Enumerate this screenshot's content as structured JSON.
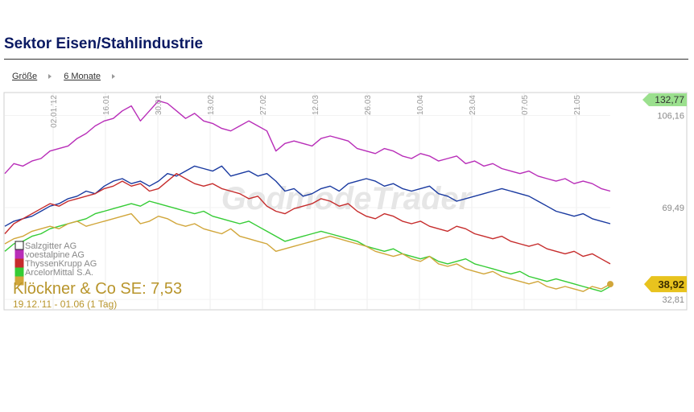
{
  "page_title": "Sektor Eisen/Stahlindustrie",
  "toolbar": {
    "size_label": "Größe",
    "range_label": "6 Monate"
  },
  "chart_data": {
    "type": "line",
    "x_ticks": [
      "02.01.'12",
      "16.01",
      "30.01",
      "13.02",
      "27.02",
      "12.03",
      "26.03",
      "10.04",
      "23.04",
      "07.05",
      "21.05"
    ],
    "y_ticks": [
      {
        "value": 106.16,
        "label": "106,16"
      },
      {
        "value": 69.49,
        "label": "69,49"
      },
      {
        "value": 32.81,
        "label": "32,81"
      }
    ],
    "ylim": [
      29,
      115
    ],
    "tag_top": {
      "value": 132.77,
      "label": "132,77",
      "color": "#9be08e"
    },
    "tag_last": {
      "value": 38.92,
      "label": "38,92",
      "color": "#e8c31e"
    },
    "watermark": "GodmodeTrader",
    "main_instrument": "Klöckner & Co SE: 7,53",
    "period": "19.12.'11 - 01.06 (1 Tag)",
    "series": [
      {
        "name": "Salzgitter AG",
        "color": "#1a3aa0",
        "values": [
          62,
          64,
          65,
          66,
          68,
          70,
          71,
          73,
          74,
          76,
          75,
          78,
          80,
          81,
          79,
          80,
          78,
          80,
          83,
          82,
          84,
          86,
          85,
          84,
          86,
          82,
          83,
          84,
          82,
          83,
          80,
          76,
          77,
          74,
          75,
          77,
          78,
          76,
          79,
          80,
          81,
          80,
          78,
          79,
          77,
          76,
          77,
          78,
          75,
          74,
          72,
          73,
          74,
          75,
          76,
          77,
          76,
          75,
          74,
          72,
          70,
          68,
          67,
          66,
          67,
          65,
          64,
          63
        ]
      },
      {
        "name": "voestalpine AG",
        "color": "#b82db8",
        "values": [
          83,
          87,
          86,
          88,
          89,
          92,
          93,
          94,
          97,
          99,
          102,
          104,
          105,
          108,
          110,
          104,
          108,
          112,
          111,
          108,
          105,
          107,
          104,
          103,
          101,
          100,
          102,
          104,
          102,
          100,
          92,
          95,
          96,
          95,
          94,
          97,
          98,
          97,
          96,
          93,
          92,
          91,
          93,
          92,
          90,
          89,
          91,
          90,
          88,
          89,
          90,
          87,
          88,
          86,
          87,
          85,
          84,
          83,
          84,
          82,
          81,
          80,
          81,
          79,
          80,
          79,
          77,
          76
        ]
      },
      {
        "name": "ThyssenKrupp AG",
        "color": "#c62c2c",
        "values": [
          59,
          63,
          65,
          67,
          69,
          71,
          70,
          72,
          73,
          74,
          75,
          77,
          78,
          80,
          78,
          79,
          76,
          77,
          80,
          83,
          81,
          79,
          78,
          79,
          77,
          76,
          75,
          73,
          74,
          70,
          68,
          67,
          69,
          70,
          71,
          73,
          72,
          70,
          71,
          68,
          66,
          65,
          67,
          66,
          64,
          63,
          64,
          62,
          61,
          60,
          62,
          61,
          59,
          58,
          57,
          58,
          56,
          55,
          54,
          55,
          53,
          52,
          51,
          52,
          50,
          51,
          49,
          47
        ]
      },
      {
        "name": "ArcelorMittal S.A.",
        "color": "#35cc35",
        "values": [
          52,
          55,
          56,
          58,
          59,
          61,
          62,
          63,
          64,
          65,
          67,
          68,
          69,
          70,
          71,
          70,
          72,
          71,
          70,
          69,
          68,
          67,
          68,
          66,
          65,
          64,
          63,
          64,
          62,
          60,
          58,
          56,
          57,
          58,
          59,
          60,
          59,
          58,
          57,
          56,
          54,
          53,
          52,
          53,
          51,
          50,
          49,
          50,
          48,
          47,
          48,
          49,
          47,
          46,
          45,
          44,
          43,
          44,
          42,
          41,
          40,
          41,
          40,
          39,
          38,
          37,
          36,
          38
        ]
      },
      {
        "name": "Klöckner & Co SE",
        "color": "#d1a63a",
        "values": [
          55,
          57,
          58,
          60,
          61,
          62,
          61,
          63,
          64,
          62,
          63,
          64,
          65,
          66,
          67,
          63,
          64,
          66,
          65,
          63,
          62,
          63,
          61,
          60,
          59,
          61,
          58,
          57,
          56,
          55,
          52,
          53,
          54,
          55,
          56,
          57,
          58,
          57,
          56,
          55,
          54,
          52,
          51,
          50,
          51,
          49,
          48,
          50,
          47,
          46,
          47,
          45,
          44,
          43,
          44,
          42,
          41,
          40,
          39,
          40,
          38,
          37,
          38,
          37,
          36,
          38,
          37,
          38.92
        ]
      }
    ]
  }
}
